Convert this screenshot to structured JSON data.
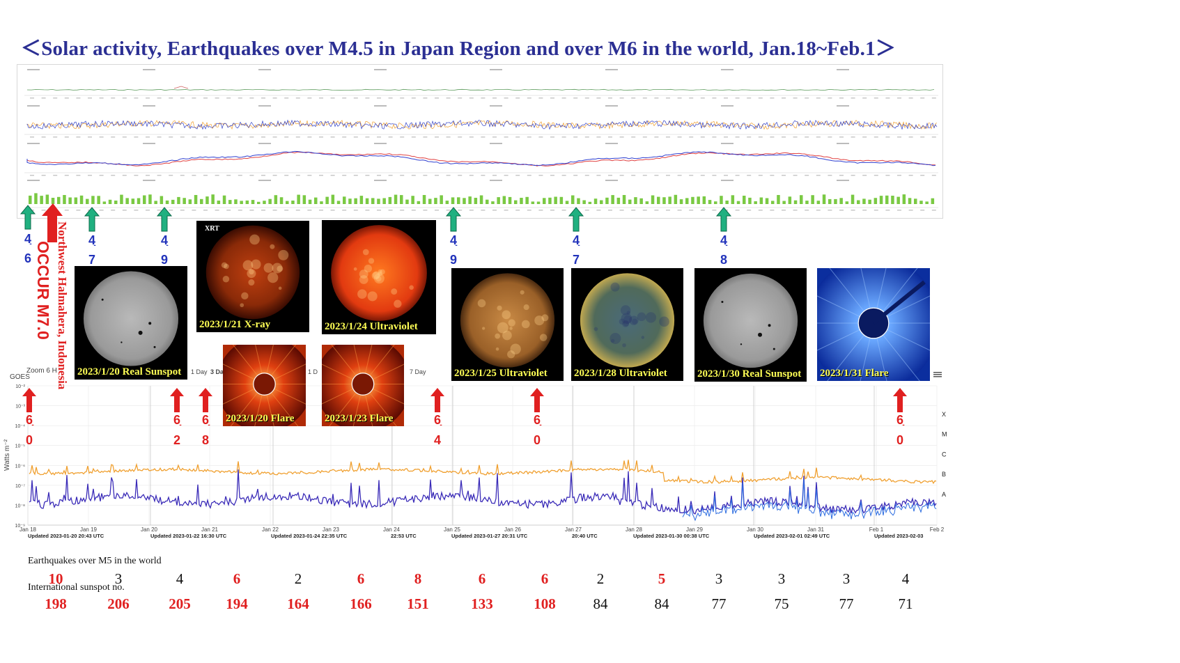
{
  "title": "＜Solar activity, Earthquakes over M4.5 in Japan Region and over M6 in the world,   Jan.18~Feb.1＞",
  "colors": {
    "title": "#2b2f93",
    "red_arrow": "#e02020",
    "green_arrow": "#20b080",
    "blue_text": "#2233bb",
    "goes_long": "#f0a030",
    "goes_short": "#3b2cb8",
    "bars": "#7ac943"
  },
  "japan_quakes": [
    {
      "mag_digits": [
        "4",
        "6"
      ],
      "red_arrow": true
    },
    {
      "mag_digits": [
        "4",
        "7"
      ]
    },
    {
      "mag_digits": [
        "4",
        "9"
      ]
    },
    {
      "mag_digits": [
        "4",
        "9"
      ]
    },
    {
      "mag_digits": [
        "4",
        "7"
      ]
    },
    {
      "mag_digits": [
        "4",
        "8"
      ]
    }
  ],
  "occur_label": "OCCUR M7.0",
  "location_label": "Northwest  Halmahera, Indonesia",
  "world_quakes": [
    {
      "mag_digits": [
        "6",
        "0"
      ]
    },
    {
      "mag_digits": [
        "6",
        "2"
      ]
    },
    {
      "mag_digits": [
        "6",
        "8"
      ]
    },
    {
      "mag_digits": [
        "6",
        "4"
      ]
    },
    {
      "mag_digits": [
        "6",
        "0"
      ]
    },
    {
      "mag_digits": [
        "6",
        "0"
      ]
    }
  ],
  "photos": [
    {
      "caption": "2023/1/20 Real Sunspot",
      "kind": "sunspot"
    },
    {
      "caption": "2023/1/21 X-ray",
      "kind": "xray",
      "sticker": "XRT"
    },
    {
      "caption": "2023/1/24 Ultraviolet",
      "kind": "uv_red"
    },
    {
      "caption": "2023/1/20 Flare",
      "kind": "flare_red"
    },
    {
      "caption": "2023/1/23 Flare",
      "kind": "flare_red"
    },
    {
      "caption": "2023/1/25 Ultraviolet",
      "kind": "uv_gold"
    },
    {
      "caption": "2023/1/28 Ultraviolet",
      "kind": "uv_multi"
    },
    {
      "caption": "2023/1/30 Real Sunspot",
      "kind": "sunspot"
    },
    {
      "caption": "2023/1/31 Flare",
      "kind": "flare_blue"
    }
  ],
  "goes_chart": {
    "header": "GOES",
    "zoom_text": "Zoom 6 H",
    "day_buttons": [
      "1 Day",
      "3 Da",
      "1 D",
      "7 Day"
    ],
    "ylabel": "Watts m⁻²",
    "yticks": [
      "10⁻²",
      "10⁻³",
      "10⁻⁴",
      "10⁻⁵",
      "10⁻⁶",
      "10⁻⁷",
      "10⁻⁸",
      "10⁻⁹"
    ],
    "classes": [
      "X",
      "M",
      "C",
      "B",
      "A"
    ],
    "date_ticks": [
      "Jan 18",
      "Jan 19",
      "Jan 20",
      "Jan 21",
      "Jan 22",
      "Jan 23",
      "Jan 24",
      "Jan 25",
      "Jan 26",
      "Jan 27",
      "Jan 28",
      "Jan 29",
      "Jan 30",
      "Jan 31",
      "Feb 1",
      "Feb 2"
    ],
    "updated": [
      "Updated 2023-01-20 20:43 UTC",
      "Updated 2023-01-22 16:30 UTC",
      "Updated 2023-01-24 22:35 UTC",
      "22:53 UTC",
      "Updated 2023-01-27 20:31 UTC",
      "20:40 UTC",
      "Updated 2023-01-30 00:38 UTC",
      "Updated 2023-02-01 02:49 UTC",
      "Updated 2023-02-03"
    ]
  },
  "chart_data": {
    "type": "table",
    "rows": [
      {
        "label": "Earthquakes over M5 in the world",
        "values": [
          10,
          3,
          4,
          6,
          2,
          6,
          8,
          6,
          6,
          2,
          5,
          3,
          3,
          3,
          4
        ],
        "highlight": [
          true,
          false,
          false,
          true,
          false,
          true,
          true,
          true,
          true,
          false,
          true,
          false,
          false,
          false,
          false
        ]
      },
      {
        "label": "International sunspot no.",
        "values": [
          198,
          206,
          205,
          194,
          164,
          166,
          151,
          133,
          108,
          84,
          84,
          77,
          75,
          77,
          71
        ],
        "highlight": [
          true,
          true,
          true,
          true,
          true,
          true,
          true,
          true,
          true,
          false,
          false,
          false,
          false,
          false,
          false
        ]
      }
    ]
  }
}
